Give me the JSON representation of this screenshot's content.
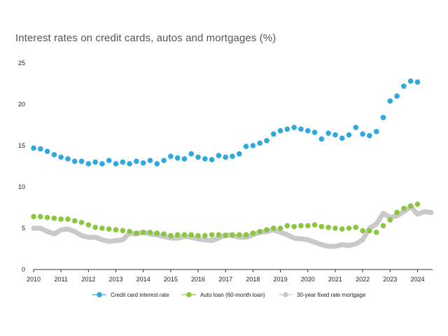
{
  "chart_data": {
    "type": "scatter",
    "title": "Interest rates on credit cards, autos and mortgages (%)",
    "xlabel": "",
    "ylabel": "",
    "xlim": [
      2010.0,
      2024.55
    ],
    "ylim": [
      0,
      25
    ],
    "x_ticks": [
      2010,
      2011,
      2012,
      2013,
      2014,
      2015,
      2016,
      2017,
      2018,
      2019,
      2020,
      2021,
      2022,
      2023,
      2024
    ],
    "y_ticks": [
      0,
      5,
      10,
      15,
      20,
      25
    ],
    "grid": false,
    "legend_position": "bottom",
    "series": [
      {
        "name": "Credit card interest rate",
        "color": "#2ea8dd",
        "x": [
          2010.0,
          2010.25,
          2010.5,
          2010.75,
          2011.0,
          2011.25,
          2011.5,
          2011.75,
          2012.0,
          2012.25,
          2012.5,
          2012.75,
          2013.0,
          2013.25,
          2013.5,
          2013.75,
          2014.0,
          2014.25,
          2014.5,
          2014.75,
          2015.0,
          2015.25,
          2015.5,
          2015.75,
          2016.0,
          2016.25,
          2016.5,
          2016.75,
          2017.0,
          2017.25,
          2017.5,
          2017.75,
          2018.0,
          2018.25,
          2018.5,
          2018.75,
          2019.0,
          2019.25,
          2019.5,
          2019.75,
          2020.0,
          2020.25,
          2020.5,
          2020.75,
          2021.0,
          2021.25,
          2021.5,
          2021.75,
          2022.0,
          2022.25,
          2022.5,
          2022.75,
          2023.0,
          2023.25,
          2023.5,
          2023.75,
          2024.0
        ],
        "values": [
          14.7,
          14.6,
          14.3,
          13.9,
          13.6,
          13.4,
          13.1,
          13.1,
          12.8,
          13.0,
          12.8,
          13.2,
          12.8,
          13.0,
          12.8,
          13.1,
          12.9,
          13.2,
          12.8,
          13.2,
          13.7,
          13.5,
          13.4,
          14.0,
          13.6,
          13.4,
          13.3,
          13.8,
          13.6,
          13.7,
          14.0,
          14.9,
          15.0,
          15.3,
          15.6,
          16.4,
          16.8,
          17.0,
          17.2,
          17.0,
          16.8,
          16.6,
          15.8,
          16.5,
          16.3,
          15.9,
          16.3,
          17.2,
          16.4,
          16.2,
          16.7,
          18.4,
          20.4,
          21.0,
          22.2,
          22.8,
          22.7
        ]
      },
      {
        "name": "Auto loan (60-month loan)",
        "color": "#8cc63f",
        "x": [
          2010.0,
          2010.25,
          2010.5,
          2010.75,
          2011.0,
          2011.25,
          2011.5,
          2011.75,
          2012.0,
          2012.25,
          2012.5,
          2012.75,
          2013.0,
          2013.25,
          2013.5,
          2013.75,
          2014.0,
          2014.25,
          2014.5,
          2014.75,
          2015.0,
          2015.25,
          2015.5,
          2015.75,
          2016.0,
          2016.25,
          2016.5,
          2016.75,
          2017.0,
          2017.25,
          2017.5,
          2017.75,
          2018.0,
          2018.25,
          2018.5,
          2018.75,
          2019.0,
          2019.25,
          2019.5,
          2019.75,
          2020.0,
          2020.25,
          2020.5,
          2020.75,
          2021.0,
          2021.25,
          2021.5,
          2021.75,
          2022.0,
          2022.25,
          2022.5,
          2022.75,
          2023.0,
          2023.25,
          2023.5,
          2023.75,
          2024.0
        ],
        "values": [
          6.4,
          6.4,
          6.3,
          6.2,
          6.1,
          6.1,
          5.9,
          5.7,
          5.4,
          5.1,
          5.0,
          4.9,
          4.8,
          4.7,
          4.6,
          4.4,
          4.5,
          4.5,
          4.4,
          4.3,
          4.1,
          4.2,
          4.2,
          4.2,
          4.1,
          4.1,
          4.2,
          4.2,
          4.1,
          4.2,
          4.2,
          4.2,
          4.4,
          4.6,
          4.8,
          5.0,
          5.0,
          5.3,
          5.2,
          5.3,
          5.3,
          5.4,
          5.2,
          5.1,
          5.0,
          4.9,
          5.0,
          5.1,
          4.7,
          4.7,
          4.5,
          5.3,
          6.0,
          6.9,
          7.4,
          7.7,
          7.9
        ]
      },
      {
        "name": "30-year fixed rate mortgage",
        "color": "#c9c9c9",
        "x": [
          2010.0,
          2010.25,
          2010.5,
          2010.75,
          2011.0,
          2011.25,
          2011.5,
          2011.75,
          2012.0,
          2012.25,
          2012.5,
          2012.75,
          2013.0,
          2013.25,
          2013.5,
          2013.75,
          2014.0,
          2014.25,
          2014.5,
          2014.75,
          2015.0,
          2015.25,
          2015.5,
          2015.75,
          2016.0,
          2016.25,
          2016.5,
          2016.75,
          2017.0,
          2017.25,
          2017.5,
          2017.75,
          2018.0,
          2018.25,
          2018.5,
          2018.75,
          2019.0,
          2019.25,
          2019.5,
          2019.75,
          2020.0,
          2020.25,
          2020.5,
          2020.75,
          2021.0,
          2021.25,
          2021.5,
          2021.75,
          2022.0,
          2022.25,
          2022.5,
          2022.75,
          2023.0,
          2023.25,
          2023.5,
          2023.75,
          2024.0,
          2024.25,
          2024.5
        ],
        "values": [
          5.0,
          5.0,
          4.6,
          4.3,
          4.8,
          4.9,
          4.6,
          4.1,
          3.9,
          3.9,
          3.6,
          3.4,
          3.5,
          3.6,
          4.4,
          4.3,
          4.5,
          4.3,
          4.2,
          4.0,
          3.8,
          3.8,
          4.0,
          3.9,
          3.7,
          3.6,
          3.5,
          3.8,
          4.2,
          4.1,
          3.9,
          3.9,
          4.2,
          4.5,
          4.6,
          4.8,
          4.5,
          4.2,
          3.8,
          3.7,
          3.6,
          3.3,
          3.0,
          2.8,
          2.8,
          3.0,
          2.9,
          3.1,
          3.6,
          5.0,
          5.5,
          6.8,
          6.3,
          6.5,
          7.0,
          7.6,
          6.7,
          7.0,
          6.9
        ]
      }
    ]
  }
}
